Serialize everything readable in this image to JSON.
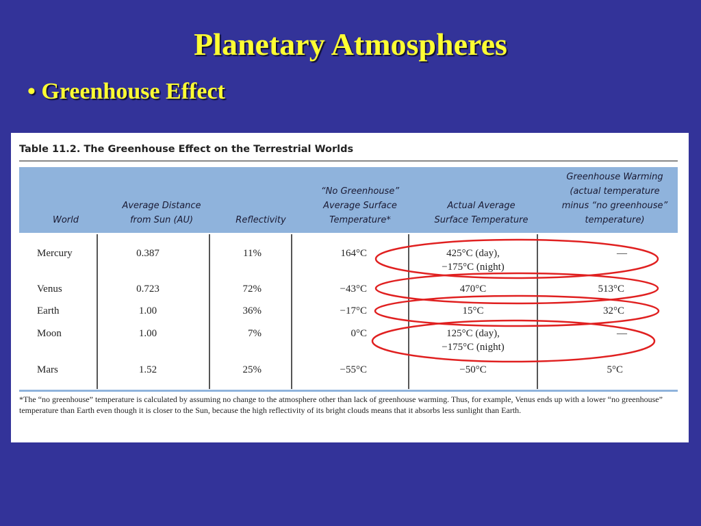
{
  "slide": {
    "title": "Planetary Atmospheres",
    "bullet": "• Greenhouse Effect"
  },
  "table": {
    "caption": "Table 11.2. The Greenhouse Effect on the Terrestrial Worlds",
    "headers": {
      "world": "World",
      "distance": "Average Distance\nfrom Sun (AU)",
      "reflectivity": "Reflectivity",
      "no_greenhouse": "“No Greenhouse”\nAverage Surface\nTemperature*",
      "actual": "Actual Average\nSurface Temperature",
      "warming": "Greenhouse Warming\n(actual temperature\nminus “no greenhouse”\ntemperature)"
    },
    "rows": [
      {
        "world": "Mercury",
        "distance": "0.387",
        "reflectivity": "11%",
        "no_greenhouse": "164°C",
        "actual": "425°C (day),\n−175°C (night)",
        "warming": "—"
      },
      {
        "world": "Venus",
        "distance": "0.723",
        "reflectivity": "72%",
        "no_greenhouse": "−43°C",
        "actual": "470°C",
        "warming": "513°C"
      },
      {
        "world": "Earth",
        "distance": "1.00",
        "reflectivity": "36%",
        "no_greenhouse": "−17°C",
        "actual": "15°C",
        "warming": "32°C"
      },
      {
        "world": "Moon",
        "distance": "1.00",
        "reflectivity": "7%",
        "no_greenhouse": "0°C",
        "actual": "125°C (day),\n−175°C (night)",
        "warming": "—"
      },
      {
        "world": "Mars",
        "distance": "1.52",
        "reflectivity": "25%",
        "no_greenhouse": "−55°C",
        "actual": "−50°C",
        "warming": "5°C"
      }
    ],
    "footnote": "*The “no greenhouse” temperature is calculated by assuming no change to the atmosphere other than lack of greenhouse warming. Thus, for example, Venus ends up with a lower “no greenhouse” temperature than Earth even though it is closer to the Sun, because the high reflectivity of its bright clouds means that it absorbs less sunlight than Earth."
  },
  "colors": {
    "background": "#333399",
    "title": "#ffff33",
    "header_band": "#8fb3dc",
    "annotation": "#e02020"
  }
}
